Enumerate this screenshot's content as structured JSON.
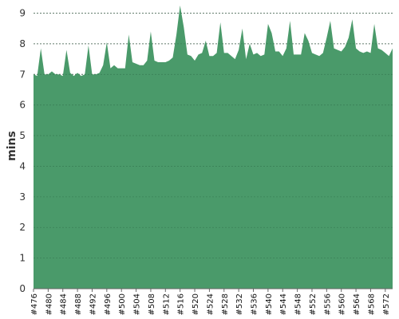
{
  "chart_data": {
    "type": "area",
    "ylabel": "mins",
    "xlabel": "",
    "title": "",
    "ylim": [
      0,
      9.3
    ],
    "yticks": [
      0,
      1,
      2,
      3,
      4,
      5,
      6,
      7,
      8,
      9
    ],
    "grid": "horizontal dashed",
    "color": "#4a9a6a",
    "series": [
      {
        "x": [
          "#476",
          "#477",
          "#478",
          "#479",
          "#480",
          "#481",
          "#482",
          "#483",
          "#484",
          "#485",
          "#486",
          "#487",
          "#488",
          "#489",
          "#490",
          "#491",
          "#492",
          "#493",
          "#494",
          "#495",
          "#496",
          "#497",
          "#498",
          "#499",
          "#500",
          "#501",
          "#502",
          "#503",
          "#504",
          "#505",
          "#506",
          "#507",
          "#508",
          "#509",
          "#510",
          "#511",
          "#512",
          "#513",
          "#514",
          "#515",
          "#516",
          "#517",
          "#518",
          "#519",
          "#520",
          "#521",
          "#522",
          "#523",
          "#524",
          "#525",
          "#526",
          "#527",
          "#528",
          "#529",
          "#530",
          "#531",
          "#532",
          "#533",
          "#534",
          "#535",
          "#536",
          "#537",
          "#538",
          "#539",
          "#540",
          "#541",
          "#542",
          "#543",
          "#544",
          "#545",
          "#546",
          "#547",
          "#548",
          "#549",
          "#550",
          "#551",
          "#552",
          "#553",
          "#554",
          "#555",
          "#556",
          "#557",
          "#558",
          "#559",
          "#560",
          "#561",
          "#562",
          "#563",
          "#564",
          "#565",
          "#566",
          "#567",
          "#568",
          "#569",
          "#570",
          "#571",
          "#572",
          "#573",
          "#574"
        ],
        "values": [
          7.0,
          6.95,
          7.85,
          7.0,
          7.0,
          7.1,
          7.0,
          7.0,
          6.95,
          7.8,
          7.05,
          6.95,
          7.05,
          6.95,
          7.0,
          7.95,
          7.0,
          7.0,
          7.05,
          7.3,
          8.05,
          7.2,
          7.3,
          7.2,
          7.2,
          7.2,
          8.3,
          7.4,
          7.35,
          7.3,
          7.3,
          7.45,
          8.4,
          7.45,
          7.4,
          7.4,
          7.4,
          7.45,
          7.55,
          8.3,
          9.25,
          8.55,
          7.65,
          7.6,
          7.45,
          7.65,
          7.7,
          8.1,
          7.6,
          7.6,
          7.7,
          8.7,
          7.7,
          7.7,
          7.6,
          7.5,
          7.8,
          8.5,
          7.5,
          8.0,
          7.65,
          7.7,
          7.6,
          7.65,
          8.65,
          8.35,
          7.75,
          7.75,
          7.6,
          7.85,
          8.75,
          7.65,
          7.65,
          7.65,
          8.35,
          8.1,
          7.7,
          7.65,
          7.6,
          7.7,
          8.2,
          8.75,
          7.85,
          7.8,
          7.75,
          7.9,
          8.2,
          8.8,
          7.85,
          7.75,
          7.7,
          7.75,
          7.7,
          8.65,
          7.85,
          7.8,
          7.7,
          7.6,
          7.85
        ]
      }
    ],
    "xtick_labels": [
      "#476",
      "#480",
      "#484",
      "#488",
      "#492",
      "#496",
      "#500",
      "#504",
      "#508",
      "#512",
      "#516",
      "#520",
      "#524",
      "#528",
      "#532",
      "#536",
      "#540",
      "#544",
      "#548",
      "#552",
      "#556",
      "#560",
      "#564",
      "#568",
      "#572"
    ]
  }
}
